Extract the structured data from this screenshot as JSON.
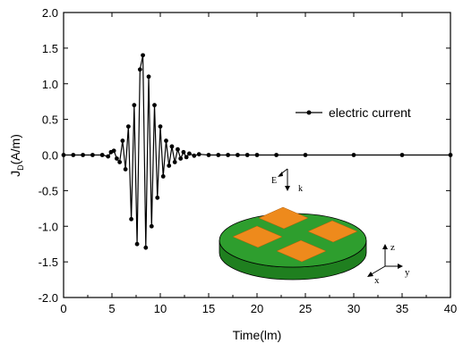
{
  "chart_data": {
    "type": "line",
    "xlabel": "Time(lm)",
    "ylabel_main": "J",
    "ylabel_sub": "D",
    "ylabel_unit": "(A/m)",
    "xlim": [
      0,
      40
    ],
    "ylim": [
      -2.0,
      2.0
    ],
    "x_ticks": [
      "0",
      "5",
      "10",
      "15",
      "20",
      "25",
      "30",
      "35",
      "40"
    ],
    "y_ticks": [
      "-2.0",
      "-1.5",
      "-1.0",
      "-0.5",
      "0.0",
      "0.5",
      "1.0",
      "1.5",
      "2.0"
    ],
    "grid": false,
    "legend_position": "top-right",
    "series": [
      {
        "name": "electric current",
        "color": "#000000",
        "marker": "circle",
        "x": [
          0,
          1,
          2,
          3,
          4,
          4.6,
          4.9,
          5.2,
          5.5,
          5.8,
          6.1,
          6.4,
          6.7,
          7.0,
          7.3,
          7.6,
          7.9,
          8.2,
          8.5,
          8.8,
          9.1,
          9.4,
          9.7,
          10.0,
          10.3,
          10.6,
          10.9,
          11.2,
          11.5,
          11.8,
          12.1,
          12.4,
          12.7,
          13.0,
          13.5,
          14,
          15,
          16,
          17,
          18,
          19,
          20,
          22,
          25,
          30,
          35,
          40
        ],
        "values": [
          0,
          0,
          0,
          0,
          0,
          -0.02,
          0.04,
          0.06,
          -0.05,
          -0.1,
          0.2,
          -0.2,
          0.4,
          -0.9,
          0.7,
          -1.25,
          1.2,
          1.4,
          -1.3,
          1.1,
          -1.0,
          0.7,
          -0.6,
          0.4,
          -0.3,
          0.2,
          -0.15,
          0.12,
          -0.1,
          0.08,
          -0.05,
          0.04,
          -0.03,
          0.02,
          -0.01,
          0.01,
          0,
          0,
          0,
          0,
          0,
          0,
          0,
          0,
          0,
          0,
          0
        ]
      }
    ]
  },
  "inset": {
    "e_label": "E",
    "k_label": "k",
    "axis_x": "x",
    "axis_y": "y",
    "axis_z": "z",
    "disk_color": "#2e9e2e",
    "patch_color": "#ee8a1c"
  }
}
